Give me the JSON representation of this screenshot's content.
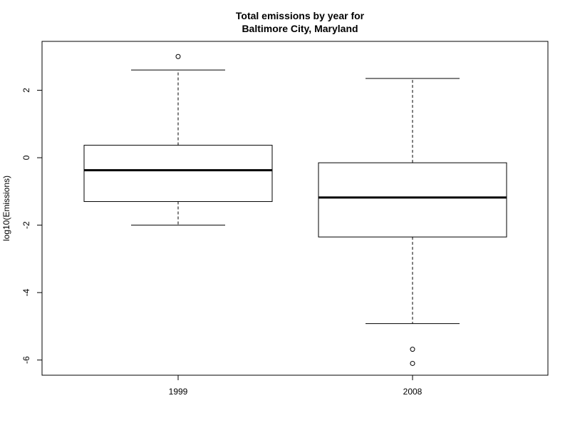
{
  "chart_data": {
    "type": "boxplot",
    "title": [
      "Total emissions by year for",
      "Baltimore City, Maryland"
    ],
    "xlabel": "",
    "ylabel": "log10(Emissions)",
    "ylim": [
      -6.45,
      3.45
    ],
    "y_ticks": [
      -6,
      -4,
      -2,
      0,
      2
    ],
    "y_tick_labels": [
      "-6",
      "-4",
      "-2",
      "0",
      "2"
    ],
    "grid": false,
    "categories": [
      "1999",
      "2008"
    ],
    "boxes": [
      {
        "category": "1999",
        "whisker_low": -2.0,
        "q1": -1.3,
        "median": -0.37,
        "q3": 0.37,
        "whisker_high": 2.6,
        "outliers": [
          3.0
        ]
      },
      {
        "category": "2008",
        "whisker_low": -4.92,
        "q1": -2.35,
        "median": -1.18,
        "q3": -0.15,
        "whisker_high": 2.35,
        "outliers": [
          -5.68,
          -6.1
        ]
      }
    ]
  }
}
